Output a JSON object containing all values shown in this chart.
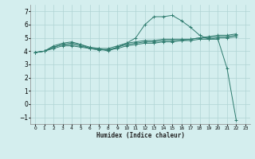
{
  "bg_color": "#d4eeee",
  "grid_color": "#b0d4d4",
  "line_color": "#2e7b6e",
  "xlabel": "Humidex (Indice chaleur)",
  "xlim": [
    -0.5,
    23.5
  ],
  "ylim": [
    -1.5,
    7.5
  ],
  "xticks": [
    0,
    1,
    2,
    3,
    4,
    5,
    6,
    7,
    8,
    9,
    10,
    11,
    12,
    13,
    14,
    15,
    16,
    17,
    18,
    19,
    20,
    21,
    22,
    23
  ],
  "yticks": [
    -1,
    0,
    1,
    2,
    3,
    4,
    5,
    6,
    7
  ],
  "series": [
    {
      "x": [
        0,
        1,
        2,
        3,
        4,
        5,
        6,
        7,
        8,
        9,
        10,
        11,
        12,
        13,
        14,
        15,
        16,
        17,
        18,
        19,
        20,
        21,
        22
      ],
      "y": [
        3.9,
        4.0,
        4.4,
        4.6,
        4.7,
        4.5,
        4.2,
        4.2,
        4.0,
        4.3,
        4.6,
        5.0,
        6.0,
        6.6,
        6.6,
        6.7,
        6.3,
        5.8,
        5.2,
        4.9,
        4.9,
        2.7,
        -1.2
      ]
    },
    {
      "x": [
        0,
        1,
        2,
        3,
        4,
        5,
        6,
        7,
        8,
        9,
        10,
        11,
        12,
        13,
        14,
        15,
        16,
        17,
        18,
        19,
        20,
        21,
        22
      ],
      "y": [
        3.9,
        4.0,
        4.3,
        4.5,
        4.6,
        4.5,
        4.3,
        4.2,
        4.2,
        4.4,
        4.6,
        4.7,
        4.8,
        4.8,
        4.9,
        4.9,
        4.9,
        4.9,
        5.0,
        5.1,
        5.2,
        5.2,
        5.3
      ]
    },
    {
      "x": [
        0,
        1,
        2,
        3,
        4,
        5,
        6,
        7,
        8,
        9,
        10,
        11,
        12,
        13,
        14,
        15,
        16,
        17,
        18,
        19,
        20,
        21,
        22
      ],
      "y": [
        3.9,
        4.0,
        4.3,
        4.5,
        4.5,
        4.4,
        4.2,
        4.1,
        4.1,
        4.3,
        4.5,
        4.6,
        4.7,
        4.7,
        4.8,
        4.8,
        4.8,
        4.9,
        5.0,
        5.0,
        5.1,
        5.1,
        5.2
      ]
    },
    {
      "x": [
        0,
        1,
        2,
        3,
        4,
        5,
        6,
        7,
        8,
        9,
        10,
        11,
        12,
        13,
        14,
        15,
        16,
        17,
        18,
        19,
        20,
        21,
        22
      ],
      "y": [
        3.9,
        4.0,
        4.2,
        4.4,
        4.4,
        4.3,
        4.2,
        4.1,
        4.1,
        4.2,
        4.4,
        4.5,
        4.6,
        4.6,
        4.7,
        4.7,
        4.8,
        4.8,
        4.9,
        4.9,
        5.0,
        5.0,
        5.1
      ]
    }
  ]
}
